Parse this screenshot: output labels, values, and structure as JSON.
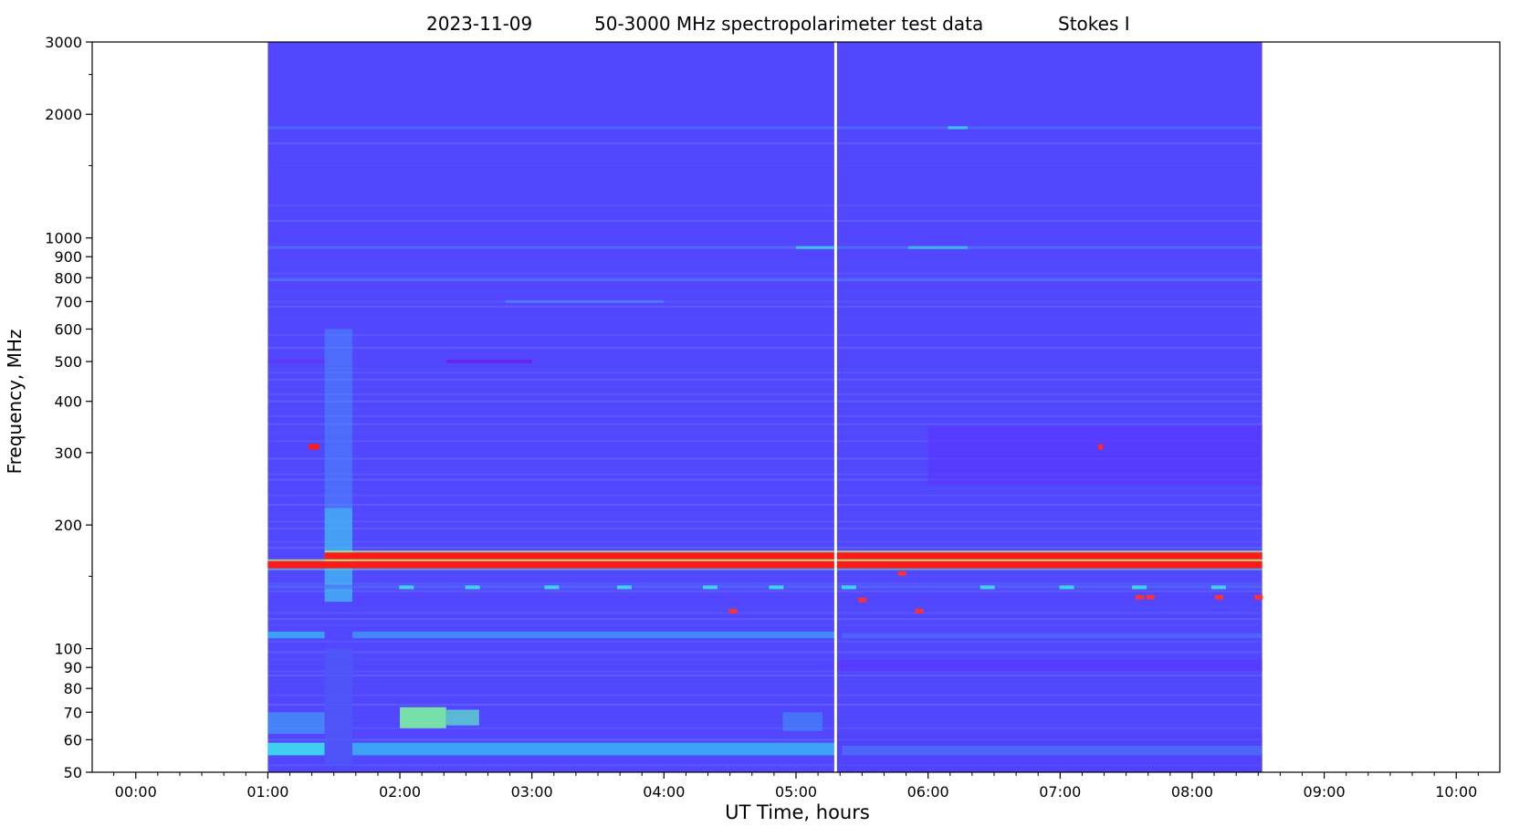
{
  "chart_data": {
    "type": "heatmap",
    "title_parts": [
      "2023-11-09",
      "50-3000 MHz spectropolarimeter test data",
      "Stokes I"
    ],
    "xlabel": "UT Time, hours",
    "ylabel": "Frequency, MHz",
    "x_ticks": [
      "00:00",
      "01:00",
      "02:00",
      "03:00",
      "04:00",
      "05:00",
      "06:00",
      "07:00",
      "08:00",
      "09:00",
      "10:00"
    ],
    "x_tick_hours": [
      0,
      1,
      2,
      3,
      4,
      5,
      6,
      7,
      8,
      9,
      10
    ],
    "xlim_hours": [
      -0.33,
      10.33
    ],
    "y_scale": "log",
    "ylim_mhz": [
      50,
      3000
    ],
    "y_ticks": [
      50,
      60,
      70,
      80,
      90,
      100,
      200,
      300,
      400,
      500,
      600,
      700,
      800,
      900,
      1000,
      2000,
      3000
    ],
    "y_tick_labels": [
      "50",
      "60",
      "70",
      "80",
      "90",
      "100",
      "200",
      "300",
      "400",
      "500",
      "600",
      "700",
      "800",
      "900",
      "1000",
      "2000",
      "3000"
    ],
    "data_extent_hours": [
      1.0,
      8.53
    ],
    "gap_line_hour": 5.3,
    "colormap": "rainbow",
    "background_color": "#5346ff",
    "rfi_bands": [
      {
        "mhz": 168,
        "start": 1.43,
        "end": 8.53,
        "level": "max"
      },
      {
        "mhz": 160,
        "start": 1.0,
        "end": 8.53,
        "level": "max"
      },
      {
        "mhz": 133,
        "start": 7.55,
        "end": 7.75,
        "level": "high"
      },
      {
        "mhz": 310,
        "start": 1.31,
        "end": 1.39,
        "level": "max"
      },
      {
        "mhz": 500,
        "start": 2.35,
        "end": 3.0,
        "level": "low"
      },
      {
        "mhz": 945,
        "start": 1.0,
        "end": 8.53,
        "level": "mid"
      },
      {
        "mhz": 1850,
        "start": 1.0,
        "end": 8.53,
        "level": "mid"
      },
      {
        "mhz": 108,
        "start": 1.0,
        "end": 8.53,
        "level": "mid"
      },
      {
        "mhz": 57,
        "start": 1.0,
        "end": 8.53,
        "level": "mid"
      }
    ]
  }
}
